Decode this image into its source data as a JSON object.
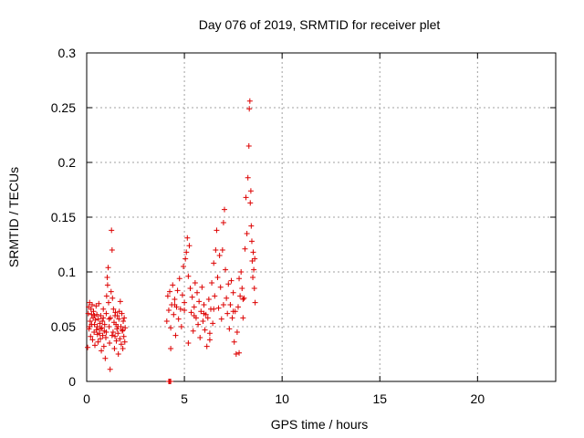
{
  "chart_data": {
    "type": "scatter",
    "title": "Day 076 of 2019, SRMTID for receiver plet",
    "xlabel": "GPS time / hours",
    "ylabel": "SRMTID / TECUs",
    "xlim": [
      0,
      24
    ],
    "ylim": [
      0,
      0.3
    ],
    "xticks": [
      0,
      5,
      10,
      15,
      20
    ],
    "xtick_labels": [
      "0",
      "5",
      "10",
      "15",
      "20"
    ],
    "yticks": [
      0,
      0.05,
      0.1,
      0.15,
      0.2,
      0.25,
      0.3
    ],
    "ytick_labels": [
      "0",
      "0.05",
      "0.1",
      "0.15",
      "0.2",
      "0.25",
      "0.3"
    ],
    "grid": true,
    "marker": "+",
    "series": [
      {
        "name": "SRMTID",
        "color": "#dd0000",
        "points": [
          [
            0.05,
            0.031
          ],
          [
            0.08,
            0.062
          ],
          [
            0.1,
            0.068
          ],
          [
            0.12,
            0.048
          ],
          [
            0.15,
            0.072
          ],
          [
            0.18,
            0.055
          ],
          [
            0.2,
            0.041
          ],
          [
            0.22,
            0.066
          ],
          [
            0.25,
            0.052
          ],
          [
            0.28,
            0.07
          ],
          [
            0.3,
            0.038
          ],
          [
            0.33,
            0.058
          ],
          [
            0.35,
            0.064
          ],
          [
            0.38,
            0.045
          ],
          [
            0.4,
            0.06
          ],
          [
            0.42,
            0.033
          ],
          [
            0.45,
            0.056
          ],
          [
            0.48,
            0.069
          ],
          [
            0.5,
            0.047
          ],
          [
            0.52,
            0.061
          ],
          [
            0.55,
            0.05
          ],
          [
            0.58,
            0.036
          ],
          [
            0.6,
            0.057
          ],
          [
            0.62,
            0.071
          ],
          [
            0.65,
            0.044
          ],
          [
            0.68,
            0.053
          ],
          [
            0.7,
            0.039
          ],
          [
            0.72,
            0.06
          ],
          [
            0.75,
            0.028
          ],
          [
            0.78,
            0.049
          ],
          [
            0.8,
            0.055
          ],
          [
            0.82,
            0.042
          ],
          [
            0.85,
            0.058
          ],
          [
            0.88,
            0.032
          ],
          [
            0.9,
            0.046
          ],
          [
            0.92,
            0.052
          ],
          [
            0.95,
            0.021
          ],
          [
            0.98,
            0.04
          ],
          [
            1.0,
            0.062
          ],
          [
            1.02,
            0.078
          ],
          [
            1.05,
            0.095
          ],
          [
            1.07,
            0.088
          ],
          [
            1.1,
            0.104
          ],
          [
            1.12,
            0.072
          ],
          [
            1.15,
            0.05
          ],
          [
            1.17,
            0.035
          ],
          [
            1.2,
            0.011
          ],
          [
            1.22,
            0.058
          ],
          [
            1.25,
            0.082
          ],
          [
            1.27,
            0.138
          ],
          [
            1.3,
            0.12
          ],
          [
            1.32,
            0.076
          ],
          [
            1.35,
            0.045
          ],
          [
            1.37,
            0.066
          ],
          [
            1.4,
            0.054
          ],
          [
            1.42,
            0.03
          ],
          [
            1.45,
            0.041
          ],
          [
            1.47,
            0.063
          ],
          [
            1.5,
            0.052
          ],
          [
            1.52,
            0.037
          ],
          [
            1.55,
            0.048
          ],
          [
            1.57,
            0.06
          ],
          [
            1.6,
            0.044
          ],
          [
            1.62,
            0.025
          ],
          [
            1.65,
            0.057
          ],
          [
            1.67,
            0.064
          ],
          [
            1.7,
            0.039
          ],
          [
            1.72,
            0.073
          ],
          [
            1.75,
            0.05
          ],
          [
            1.77,
            0.034
          ],
          [
            1.8,
            0.062
          ],
          [
            1.82,
            0.046
          ],
          [
            1.85,
            0.03
          ],
          [
            1.87,
            0.055
          ],
          [
            1.9,
            0.041
          ],
          [
            1.92,
            0.058
          ],
          [
            1.95,
            0.036
          ],
          [
            1.97,
            0.049
          ],
          [
            0.15,
            0.05
          ],
          [
            0.4,
            0.052
          ],
          [
            0.7,
            0.048
          ],
          [
            1.0,
            0.045
          ],
          [
            1.3,
            0.042
          ],
          [
            1.6,
            0.05
          ],
          [
            1.85,
            0.047
          ],
          [
            0.25,
            0.061
          ],
          [
            0.55,
            0.043
          ],
          [
            0.85,
            0.066
          ],
          [
            1.15,
            0.057
          ],
          [
            1.45,
            0.06
          ],
          [
            4.2,
            0.0
          ],
          [
            4.25,
            0.0
          ],
          [
            4.3,
            0.0
          ],
          [
            4.1,
            0.055
          ],
          [
            4.15,
            0.078
          ],
          [
            4.2,
            0.065
          ],
          [
            4.25,
            0.082
          ],
          [
            4.3,
            0.049
          ],
          [
            4.35,
            0.07
          ],
          [
            4.4,
            0.088
          ],
          [
            4.45,
            0.061
          ],
          [
            4.5,
            0.075
          ],
          [
            4.55,
            0.042
          ],
          [
            4.6,
            0.068
          ],
          [
            4.65,
            0.083
          ],
          [
            4.7,
            0.057
          ],
          [
            4.75,
            0.094
          ],
          [
            4.8,
            0.066
          ],
          [
            4.85,
            0.05
          ],
          [
            4.9,
            0.079
          ],
          [
            4.95,
            0.105
          ],
          [
            5.0,
            0.072
          ],
          [
            5.05,
            0.112
          ],
          [
            5.1,
            0.118
          ],
          [
            5.15,
            0.131
          ],
          [
            5.2,
            0.096
          ],
          [
            5.25,
            0.124
          ],
          [
            5.3,
            0.085
          ],
          [
            5.35,
            0.063
          ],
          [
            5.4,
            0.077
          ],
          [
            5.45,
            0.046
          ],
          [
            5.5,
            0.068
          ],
          [
            5.55,
            0.09
          ],
          [
            5.6,
            0.058
          ],
          [
            5.65,
            0.081
          ],
          [
            5.7,
            0.052
          ],
          [
            5.75,
            0.073
          ],
          [
            5.8,
            0.04
          ],
          [
            5.85,
            0.064
          ],
          [
            5.9,
            0.086
          ],
          [
            5.95,
            0.055
          ],
          [
            6.0,
            0.07
          ],
          [
            6.05,
            0.047
          ],
          [
            6.1,
            0.061
          ],
          [
            6.15,
            0.032
          ],
          [
            6.2,
            0.058
          ],
          [
            6.25,
            0.075
          ],
          [
            6.3,
            0.044
          ],
          [
            6.35,
            0.066
          ],
          [
            6.4,
            0.09
          ],
          [
            6.45,
            0.053
          ],
          [
            6.5,
            0.108
          ],
          [
            6.55,
            0.078
          ],
          [
            6.6,
            0.12
          ],
          [
            6.65,
            0.138
          ],
          [
            6.7,
            0.095
          ],
          [
            6.75,
            0.067
          ],
          [
            6.8,
            0.115
          ],
          [
            6.85,
            0.086
          ],
          [
            6.9,
            0.057
          ],
          [
            6.95,
            0.12
          ],
          [
            7.0,
            0.145
          ],
          [
            7.05,
            0.157
          ],
          [
            7.1,
            0.102
          ],
          [
            7.15,
            0.076
          ],
          [
            7.2,
            0.062
          ],
          [
            7.25,
            0.089
          ],
          [
            7.3,
            0.048
          ],
          [
            7.35,
            0.07
          ],
          [
            7.4,
            0.092
          ],
          [
            7.45,
            0.058
          ],
          [
            7.5,
            0.081
          ],
          [
            7.55,
            0.036
          ],
          [
            7.6,
            0.064
          ],
          [
            7.65,
            0.025
          ],
          [
            7.7,
            0.045
          ],
          [
            7.75,
            0.068
          ],
          [
            7.8,
            0.094
          ],
          [
            7.85,
            0.078
          ],
          [
            7.9,
            0.1
          ],
          [
            7.95,
            0.085
          ],
          [
            8.0,
            0.058
          ],
          [
            8.05,
            0.076
          ],
          [
            8.1,
            0.121
          ],
          [
            8.15,
            0.168
          ],
          [
            8.2,
            0.135
          ],
          [
            8.25,
            0.186
          ],
          [
            8.3,
            0.215
          ],
          [
            8.32,
            0.249
          ],
          [
            8.35,
            0.256
          ],
          [
            8.37,
            0.163
          ],
          [
            8.4,
            0.174
          ],
          [
            8.42,
            0.142
          ],
          [
            8.45,
            0.128
          ],
          [
            8.47,
            0.11
          ],
          [
            8.5,
            0.095
          ],
          [
            8.52,
            0.118
          ],
          [
            8.55,
            0.102
          ],
          [
            8.58,
            0.085
          ],
          [
            8.6,
            0.112
          ],
          [
            8.62,
            0.072
          ],
          [
            4.5,
            0.07
          ],
          [
            5.0,
            0.065
          ],
          [
            5.5,
            0.06
          ],
          [
            6.0,
            0.062
          ],
          [
            6.5,
            0.066
          ],
          [
            7.0,
            0.07
          ],
          [
            7.5,
            0.064
          ],
          [
            8.0,
            0.075
          ],
          [
            4.3,
            0.03
          ],
          [
            5.2,
            0.035
          ],
          [
            6.3,
            0.038
          ],
          [
            7.8,
            0.026
          ]
        ]
      }
    ]
  }
}
